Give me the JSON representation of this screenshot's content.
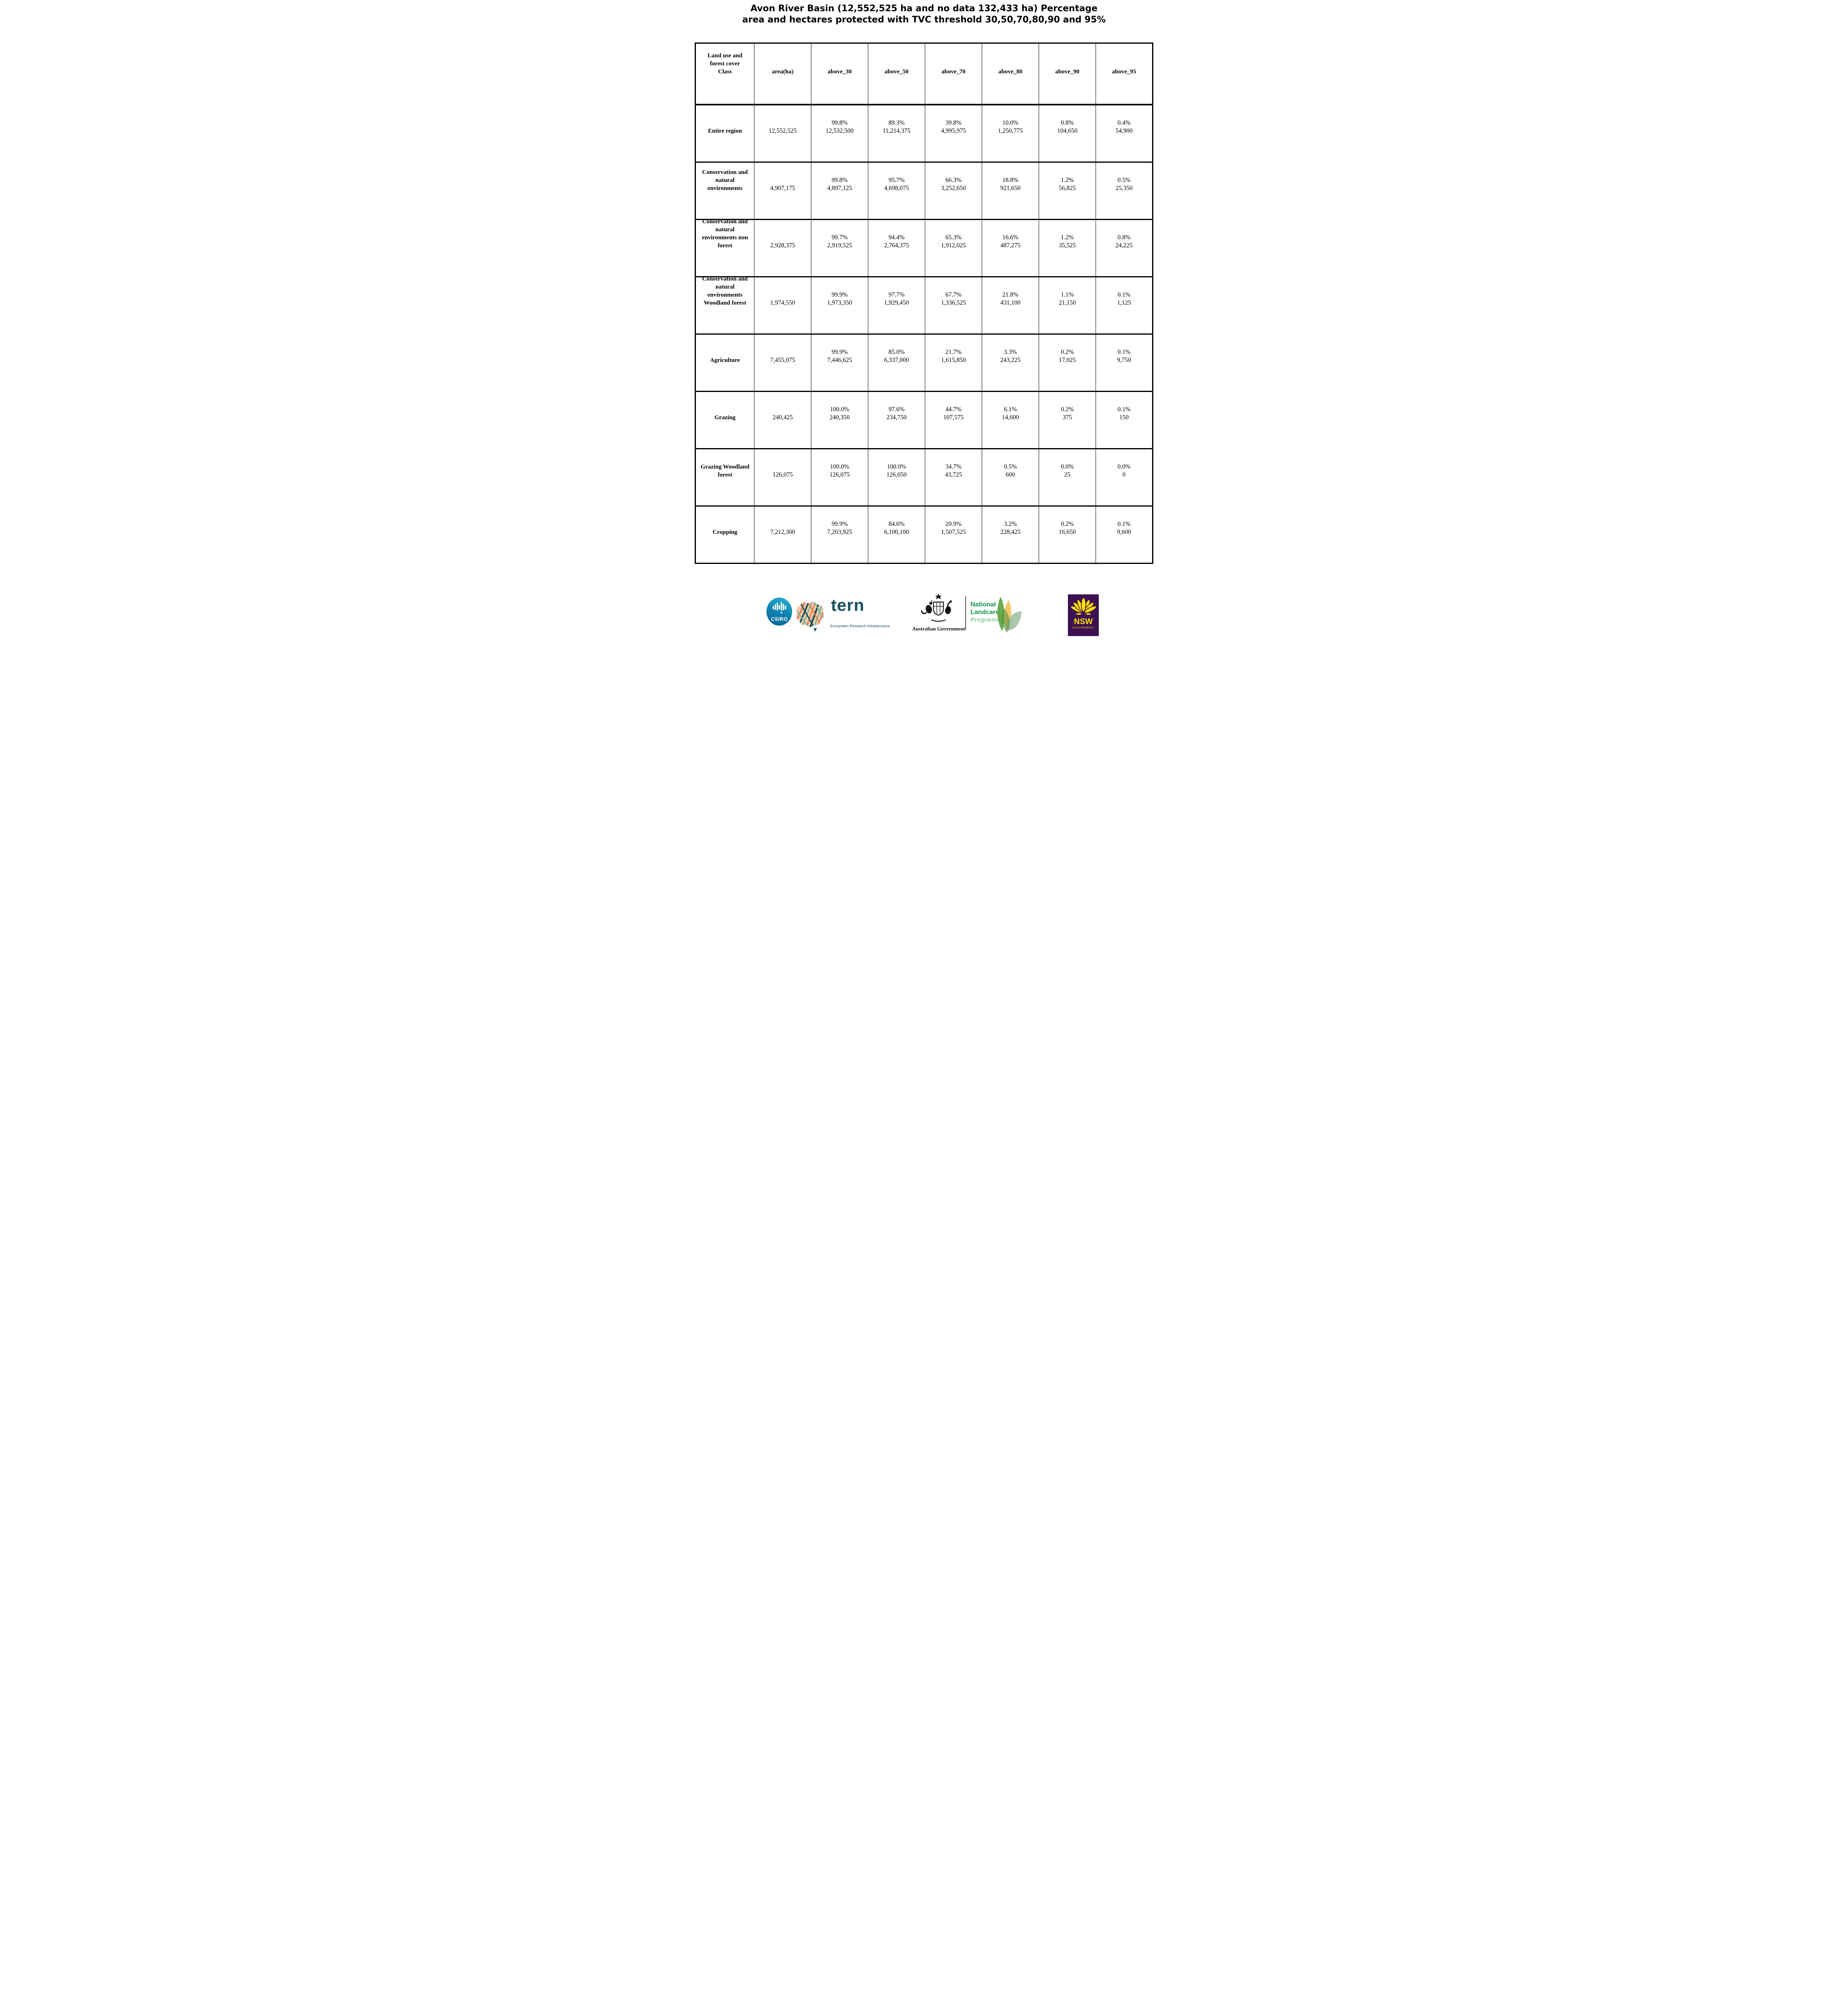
{
  "title": {
    "line1": "Avon River Basin (12,552,525 ha and no data 132,433 ha) Percentage",
    "line2": "area and hectares protected with TVC threshold 30,50,70,80,90 and 95%"
  },
  "table": {
    "header": [
      "Land use and\nforest cover\nClass",
      "area(ha)",
      "above_30",
      "above_50",
      "above_70",
      "above_80",
      "above_90",
      "above_95"
    ],
    "rows": [
      {
        "name": "Entire region",
        "area": "12,552,525",
        "cells": [
          {
            "pct": "99.8%",
            "val": "12,532,500"
          },
          {
            "pct": "89.3%",
            "val": "11,214,375"
          },
          {
            "pct": "39.8%",
            "val": "4,995,975"
          },
          {
            "pct": "10.0%",
            "val": "1,250,775"
          },
          {
            "pct": "0.8%",
            "val": "104,650"
          },
          {
            "pct": "0.4%",
            "val": "54,900"
          }
        ]
      },
      {
        "name": "Conservation and\nnatural\nenvironments",
        "area": "4,907,175",
        "cells": [
          {
            "pct": "99.8%",
            "val": "4,897,125"
          },
          {
            "pct": "95.7%",
            "val": "4,698,075"
          },
          {
            "pct": "66.3%",
            "val": "3,252,650"
          },
          {
            "pct": "18.8%",
            "val": "921,650"
          },
          {
            "pct": "1.2%",
            "val": "56,825"
          },
          {
            "pct": "0.5%",
            "val": "25,350"
          }
        ]
      },
      {
        "name": "Conservation and\nnatural\nenvironments non\nforest",
        "area": "2,928,375",
        "cells": [
          {
            "pct": "99.7%",
            "val": "2,919,525"
          },
          {
            "pct": "94.4%",
            "val": "2,764,375"
          },
          {
            "pct": "65.3%",
            "val": "1,912,025"
          },
          {
            "pct": "16.6%",
            "val": "487,275"
          },
          {
            "pct": "1.2%",
            "val": "35,525"
          },
          {
            "pct": "0.8%",
            "val": "24,225"
          }
        ]
      },
      {
        "name": "Conservation and\nnatural\nenvironments\nWoodland forest",
        "area": "1,974,550",
        "cells": [
          {
            "pct": "99.9%",
            "val": "1,973,350"
          },
          {
            "pct": "97.7%",
            "val": "1,929,450"
          },
          {
            "pct": "67.7%",
            "val": "1,336,525"
          },
          {
            "pct": "21.8%",
            "val": "431,100"
          },
          {
            "pct": "1.1%",
            "val": "21,150"
          },
          {
            "pct": "0.1%",
            "val": "1,125"
          }
        ]
      },
      {
        "name": "Agriculture",
        "area": "7,455,075",
        "cells": [
          {
            "pct": "99.9%",
            "val": "7,446,625"
          },
          {
            "pct": "85.0%",
            "val": "6,337,000"
          },
          {
            "pct": "21.7%",
            "val": "1,615,850"
          },
          {
            "pct": "3.3%",
            "val": "243,225"
          },
          {
            "pct": "0.2%",
            "val": "17,025"
          },
          {
            "pct": "0.1%",
            "val": "9,750"
          }
        ]
      },
      {
        "name": "Grazing",
        "area": "240,425",
        "cells": [
          {
            "pct": "100.0%",
            "val": "240,350"
          },
          {
            "pct": "97.6%",
            "val": "234,750"
          },
          {
            "pct": "44.7%",
            "val": "107,575"
          },
          {
            "pct": "6.1%",
            "val": "14,600"
          },
          {
            "pct": "0.2%",
            "val": "375"
          },
          {
            "pct": "0.1%",
            "val": "150"
          }
        ]
      },
      {
        "name": "Grazing Woodland\nforest",
        "area": "126,075",
        "cells": [
          {
            "pct": "100.0%",
            "val": "126,075"
          },
          {
            "pct": "100.0%",
            "val": "126,050"
          },
          {
            "pct": "34.7%",
            "val": "43,725"
          },
          {
            "pct": "0.5%",
            "val": "600"
          },
          {
            "pct": "0.0%",
            "val": "25"
          },
          {
            "pct": "0.0%",
            "val": "0"
          }
        ]
      },
      {
        "name": "Cropping",
        "area": "7,212,300",
        "cells": [
          {
            "pct": "99.9%",
            "val": "7,203,925"
          },
          {
            "pct": "84.6%",
            "val": "6,100,100"
          },
          {
            "pct": "20.9%",
            "val": "1,507,525"
          },
          {
            "pct": "3.2%",
            "val": "228,425"
          },
          {
            "pct": "0.2%",
            "val": "16,650"
          },
          {
            "pct": "0.1%",
            "val": "9,600"
          }
        ]
      }
    ]
  },
  "footer": {
    "csiro_label": "CSIRO",
    "tern_word": "tern",
    "tern_subtitle": "Ecosystem Research Infrastructure",
    "aus_gov_label": "Australian Government",
    "landcare_line1": "National",
    "landcare_line2": "Landcare",
    "landcare_line3": "Programme",
    "nsw_label": "NSW",
    "nsw_sublabel": "GOVERNMENT"
  },
  "colors": {
    "csiro_blue": "#1187b3",
    "tern_teal": "#17505f",
    "map_peach": "#f6cba6",
    "map_orange": "#e4754e",
    "map_dark_teal": "#12525e",
    "map_sage": "#7fb5a0",
    "landcare_green": "#12914c",
    "landcare_light_green": "#8fcda8",
    "leaf_green": "#61a744",
    "leaf_yellow": "#f2bc43",
    "leaf_sage": "#9bbd9c",
    "nsw_purple": "#3d1152",
    "nsw_yellow": "#ffe100"
  }
}
